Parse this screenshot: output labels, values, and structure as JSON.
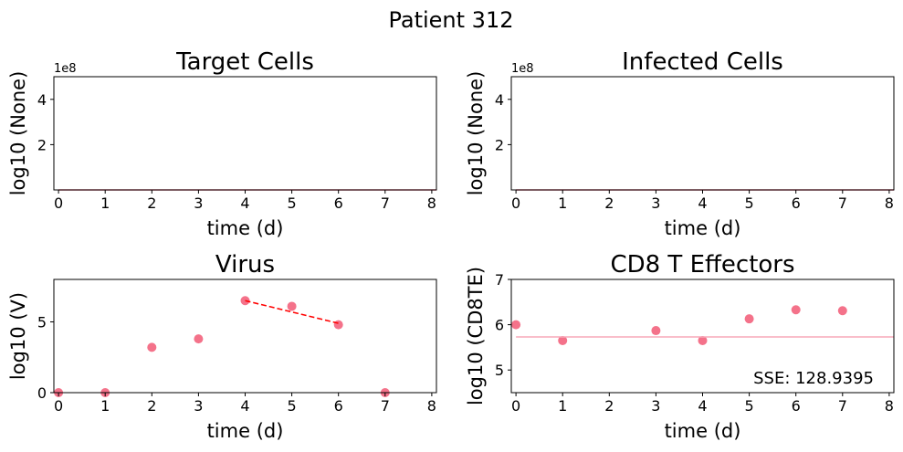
{
  "figure": {
    "title": "Patient 312"
  },
  "chart_data": [
    {
      "type": "line",
      "title": "Target Cells",
      "xlabel": "time (d)",
      "ylabel": "log10 (None)",
      "offset_text": "1e8",
      "xlim": [
        -0.1,
        8.1
      ],
      "ylim": [
        0,
        5
      ],
      "xticks": [
        0,
        1,
        2,
        3,
        4,
        5,
        6,
        7,
        8
      ],
      "yticks": [
        2,
        4
      ],
      "grid": false,
      "series": [
        {
          "values": [
            [
              0,
              0
            ],
            [
              8.1,
              0
            ]
          ],
          "color": "#f4728a",
          "style": "line"
        }
      ]
    },
    {
      "type": "line",
      "title": "Infected Cells",
      "xlabel": "time (d)",
      "ylabel": "log10 (None)",
      "offset_text": "1e8",
      "xlim": [
        -0.1,
        8.1
      ],
      "ylim": [
        0,
        5
      ],
      "xticks": [
        0,
        1,
        2,
        3,
        4,
        5,
        6,
        7,
        8
      ],
      "yticks": [
        2,
        4
      ],
      "grid": false,
      "series": [
        {
          "values": [
            [
              0,
              0
            ],
            [
              8.1,
              0
            ]
          ],
          "color": "#f4728a",
          "style": "line"
        }
      ]
    },
    {
      "type": "scatter",
      "title": "Virus",
      "xlabel": "time (d)",
      "ylabel": "log10 (V)",
      "xlim": [
        -0.1,
        8.1
      ],
      "ylim": [
        0,
        8
      ],
      "xticks": [
        0,
        1,
        2,
        3,
        4,
        5,
        6,
        7,
        8
      ],
      "yticks": [
        0,
        5
      ],
      "grid": false,
      "series": [
        {
          "values": [
            [
              0,
              0
            ],
            [
              1,
              0
            ],
            [
              2,
              3.2
            ],
            [
              3,
              3.8
            ],
            [
              4,
              6.5
            ],
            [
              5,
              6.1
            ],
            [
              6,
              4.8
            ],
            [
              7,
              0
            ]
          ],
          "color": "#f4728a",
          "style": "scatter"
        },
        {
          "values": [
            [
              4,
              6.5
            ],
            [
              6,
              4.9
            ]
          ],
          "color": "#ff0000",
          "style": "dashed-line"
        }
      ]
    },
    {
      "type": "scatter",
      "title": "CD8 T Effectors",
      "xlabel": "time (d)",
      "ylabel": "log10 (CD8TE)",
      "xlim": [
        -0.1,
        8.1
      ],
      "ylim": [
        4.5,
        7
      ],
      "xticks": [
        0,
        1,
        2,
        3,
        4,
        5,
        6,
        7,
        8
      ],
      "yticks": [
        5,
        6,
        7
      ],
      "grid": false,
      "annotation": "SSE: 128.9395",
      "series": [
        {
          "values": [
            [
              0,
              6.0
            ],
            [
              1,
              5.65
            ],
            [
              3,
              5.87
            ],
            [
              4,
              5.65
            ],
            [
              5,
              6.13
            ],
            [
              6,
              6.33
            ],
            [
              7,
              6.31
            ]
          ],
          "color": "#f4728a",
          "style": "scatter"
        },
        {
          "values": [
            [
              0,
              5.73
            ],
            [
              8.1,
              5.73
            ]
          ],
          "color": "#f7a8b8",
          "style": "line"
        }
      ]
    }
  ]
}
